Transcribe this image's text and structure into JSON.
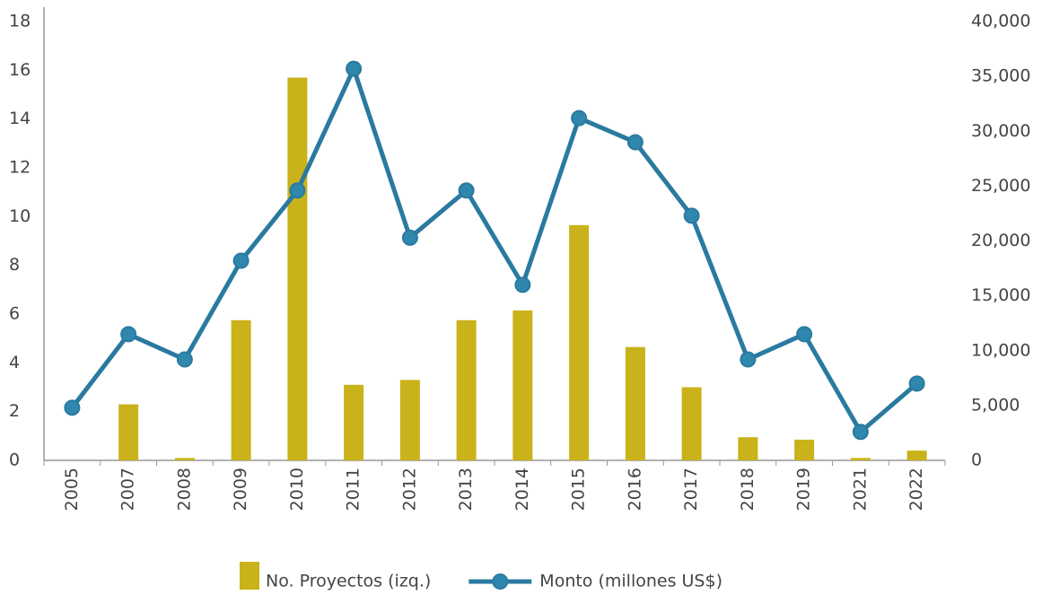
{
  "chart_data": {
    "type": "bar-line",
    "categories": [
      "2005",
      "2007",
      "2008",
      "2009",
      "2010",
      "2011",
      "2012",
      "2013",
      "2014",
      "2015",
      "2016",
      "2017",
      "2018",
      "2019",
      "2021",
      "2022"
    ],
    "series": [
      {
        "name": "No. Proyectos (izq.)",
        "type": "bar",
        "color": "#c9b21a",
        "values": [
          0,
          2.3,
          0.1,
          5.75,
          15.7,
          3.1,
          3.3,
          5.75,
          6.15,
          9.65,
          4.65,
          3.0,
          0.95,
          0.85,
          0.1,
          0.4
        ]
      },
      {
        "name": "Monto (millones US$)",
        "type": "line",
        "axis": "y2",
        "color": "#2a7aa0",
        "values": [
          4800,
          11500,
          9200,
          18200,
          24600,
          35700,
          20300,
          24600,
          16000,
          31200,
          29000,
          22300,
          9200,
          11500,
          2600,
          7000
        ]
      }
    ],
    "ylim": [
      0,
      18
    ],
    "yticks": [
      0,
      2,
      4,
      6,
      8,
      10,
      12,
      14,
      16,
      18
    ],
    "y2lim": [
      0,
      40000
    ],
    "y2ticks": [
      0,
      {
        "value": 5000,
        "label": "5,000"
      },
      {
        "value": 10000,
        "label": "10,000"
      },
      {
        "value": 15000,
        "label": "15,000"
      },
      {
        "value": 20000,
        "label": "20,000"
      },
      {
        "value": 25000,
        "label": "25,000"
      },
      {
        "value": 30000,
        "label": "30,000"
      },
      {
        "value": 35000,
        "label": "35,000"
      },
      {
        "value": 40000,
        "label": "40,000"
      }
    ],
    "legend": "bottom"
  }
}
